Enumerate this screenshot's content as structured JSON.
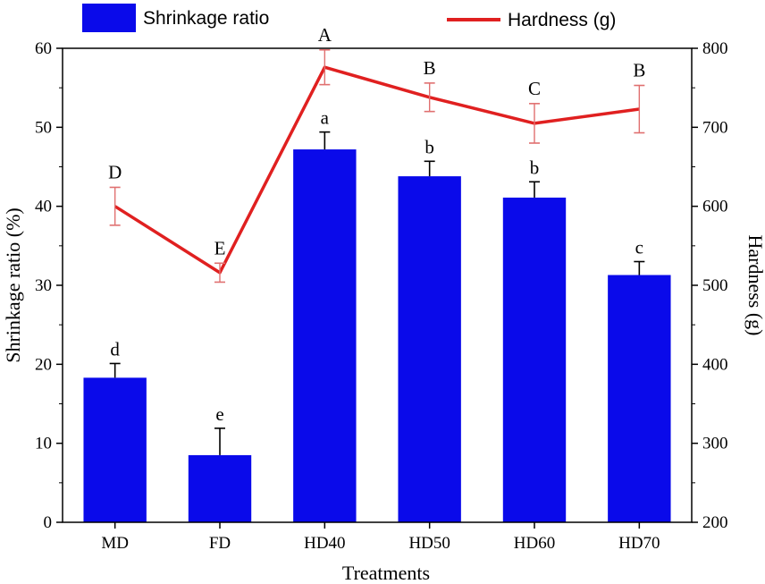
{
  "chart_data": {
    "type": "bar",
    "categories": [
      "MD",
      "FD",
      "HD40",
      "HD50",
      "HD60",
      "HD70"
    ],
    "xlabel": "Treatments",
    "ylabel": "Shrinkage ratio (%)",
    "y2label": "Hardness (g)",
    "ylim": [
      0,
      60
    ],
    "y2lim": [
      200,
      800
    ],
    "yticks": [
      "0",
      "10",
      "20",
      "30",
      "40",
      "50",
      "60"
    ],
    "y2ticks": [
      "200",
      "300",
      "400",
      "500",
      "600",
      "700",
      "800"
    ],
    "legend_placement": "top",
    "series": [
      {
        "name": "Shrinkage ratio",
        "type": "bar",
        "axis": "left",
        "color": "#0a0aea",
        "values": [
          18.3,
          8.5,
          47.2,
          43.8,
          41.1,
          31.3
        ],
        "errors": [
          1.8,
          3.4,
          2.2,
          1.9,
          2.0,
          1.7
        ],
        "labels": [
          "d",
          "e",
          "a",
          "b",
          "b",
          "c"
        ]
      },
      {
        "name": "Hardness (g)",
        "type": "line",
        "axis": "right",
        "color": "#e02020",
        "values": [
          600,
          516,
          776,
          738,
          705,
          723
        ],
        "errors": [
          24,
          12,
          22,
          18,
          25,
          30
        ],
        "labels": [
          "D",
          "E",
          "A",
          "B",
          "C",
          "B"
        ]
      }
    ]
  }
}
